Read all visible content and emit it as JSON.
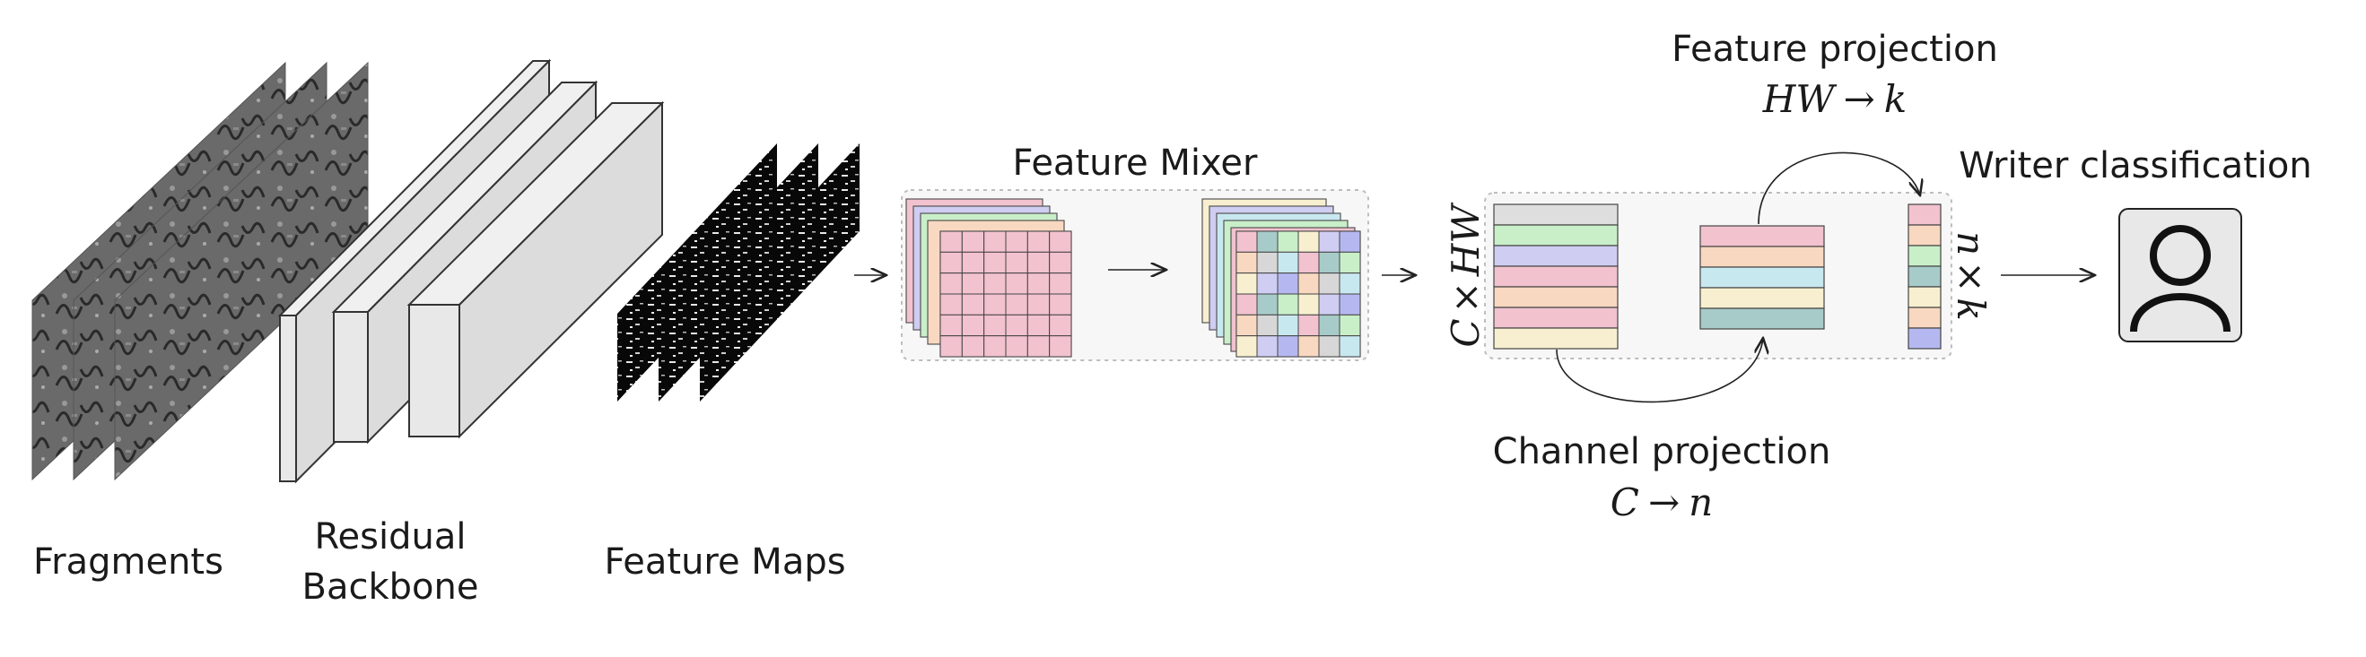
{
  "labels": {
    "fragments": "Fragments",
    "backbone_line1": "Residual",
    "backbone_line2": "Backbone",
    "feature_maps": "Feature Maps",
    "feature_mixer": "Feature Mixer",
    "feature_projection": "Feature projection",
    "channel_projection": "Channel projection",
    "writer_classification": "Writer classification"
  },
  "math": {
    "feature_projection": {
      "a": "HW",
      "arrow": "→",
      "b": "k"
    },
    "channel_projection": {
      "a": "C",
      "arrow": "→",
      "b": "n"
    },
    "left_dim": {
      "a": "C",
      "times": "×",
      "b": "HW"
    },
    "right_dim": {
      "a": "n",
      "times": "×",
      "b": "k"
    }
  },
  "arrows": [
    "→",
    "→",
    "→"
  ],
  "icons": [
    "fragment-image",
    "backbone-block",
    "feature-map",
    "grid-stack",
    "person-icon"
  ],
  "colors": {
    "pink": "#f2c2cf",
    "green": "#c9efc9",
    "lavender": "#cfcdf2",
    "peach": "#f8d8c0",
    "cyan": "#c8e8f0",
    "teal": "#a7cbc8",
    "cream": "#f7efcf",
    "blue": "#b5b8f0",
    "panel_bg": "#f7f7f7"
  }
}
